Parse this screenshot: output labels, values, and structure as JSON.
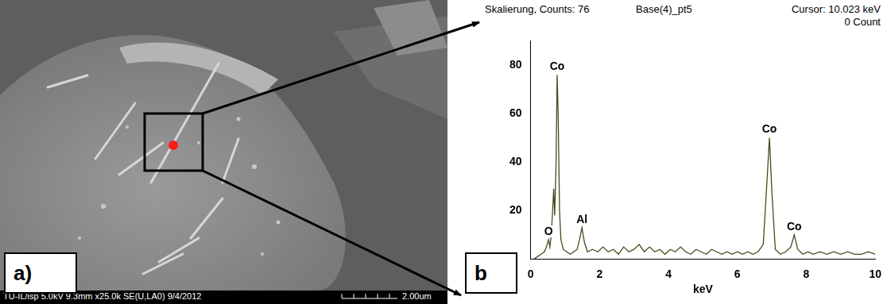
{
  "image_panel": {
    "label": "a)",
    "info": "TU-IL/isp 5.0kV 9.3mm x25.0k SE(U,LA0) 9/4/2012",
    "scale_bar": "2.00um"
  },
  "chart_data": {
    "type": "line",
    "panel_label": "b",
    "header": {
      "scaling": "Skalierung, Counts: 76",
      "spectrum": "Base(4)_pt5",
      "cursor": "Cursor: 10.023 keV",
      "cursor_counts": "0 Count"
    },
    "x_label": "keV",
    "x": [
      0.1,
      0.2,
      0.3,
      0.4,
      0.46,
      0.52,
      0.56,
      0.6,
      0.64,
      0.67,
      0.7,
      0.74,
      0.77,
      0.8,
      0.84,
      0.88,
      0.95,
      1.05,
      1.15,
      1.25,
      1.35,
      1.42,
      1.49,
      1.56,
      1.65,
      1.8,
      1.95,
      2.1,
      2.25,
      2.4,
      2.55,
      2.7,
      2.85,
      3.0,
      3.15,
      3.3,
      3.45,
      3.6,
      3.75,
      3.9,
      4.05,
      4.2,
      4.35,
      4.5,
      4.65,
      4.8,
      4.95,
      5.1,
      5.25,
      5.4,
      5.55,
      5.7,
      5.85,
      6.0,
      6.15,
      6.3,
      6.45,
      6.6,
      6.75,
      6.85,
      6.93,
      7.0,
      7.1,
      7.25,
      7.4,
      7.55,
      7.65,
      7.75,
      7.9,
      8.05,
      8.2,
      8.4,
      8.6,
      8.8,
      9.0,
      9.2,
      9.4,
      9.6,
      9.8,
      10.0
    ],
    "values": [
      0,
      1,
      2,
      3,
      5,
      8,
      5,
      10,
      20,
      29,
      18,
      40,
      76,
      60,
      20,
      8,
      4,
      3,
      2,
      3,
      4,
      8,
      13,
      7,
      3,
      4,
      3,
      5,
      3,
      4,
      2,
      5,
      3,
      4,
      6,
      3,
      5,
      3,
      4,
      2,
      4,
      3,
      5,
      3,
      2,
      4,
      3,
      2,
      4,
      3,
      2,
      3,
      2,
      3,
      2,
      3,
      2,
      3,
      6,
      30,
      50,
      28,
      4,
      2,
      3,
      5,
      10,
      4,
      2,
      3,
      2,
      3,
      2,
      3,
      2,
      3,
      2,
      2,
      3,
      2
    ],
    "color": "#4a4a1e",
    "peaks": [
      {
        "label": "O",
        "x": 0.52,
        "value": 8
      },
      {
        "label": "Co",
        "x": 0.77,
        "value": 76
      },
      {
        "label": "Al",
        "x": 1.49,
        "value": 13
      },
      {
        "label": "Co",
        "x": 6.93,
        "value": 50
      },
      {
        "label": "Co",
        "x": 7.65,
        "value": 10
      }
    ],
    "xlim": [
      0,
      10
    ],
    "xticks": [
      0,
      2,
      4,
      6,
      8,
      10
    ],
    "ylim": [
      0,
      90
    ],
    "yticks": [
      20,
      40,
      60,
      80
    ],
    "grid": false
  }
}
